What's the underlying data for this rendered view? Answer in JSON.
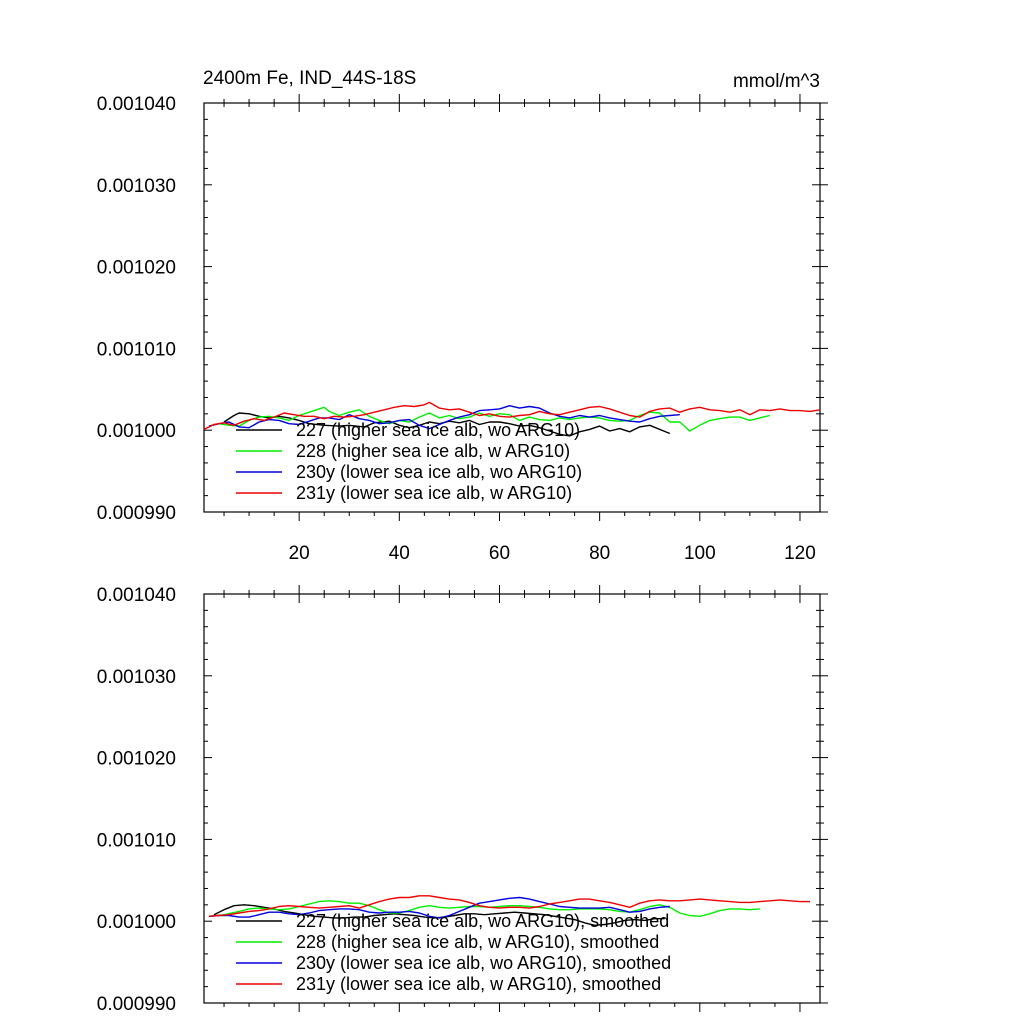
{
  "chart_data": [
    {
      "type": "line",
      "title": "2400m Fe, IND_44S-18S",
      "units": "mmol/m^3",
      "xlim": [
        1,
        124
      ],
      "ylim": [
        0.00099,
        0.00104
      ],
      "yticks": [
        "0.001040",
        "0.001030",
        "0.001020",
        "0.001010",
        "0.001000",
        "0.000990"
      ],
      "xticks": [
        "20",
        "40",
        "60",
        "80",
        "100",
        "120"
      ],
      "legend_position": "lower-left",
      "series": [
        {
          "name": "227 (higher sea ice alb, wo ARG10)",
          "color": "#000000",
          "x": [
            5,
            7,
            8,
            10,
            12,
            14,
            16,
            18,
            20,
            22,
            25,
            28,
            30,
            33,
            35,
            38,
            40,
            42,
            44,
            46,
            48,
            50,
            52,
            54,
            56,
            58,
            60,
            62,
            64,
            66,
            68,
            70,
            72,
            74,
            76,
            78,
            80,
            82,
            84,
            86,
            88,
            90,
            92,
            94
          ],
          "y": [
            0.001001,
            0.0010018,
            0.0010021,
            0.001002,
            0.0010017,
            0.0010015,
            0.0010017,
            0.0010015,
            0.0010012,
            0.0010008,
            0.0010006,
            0.0010005,
            0.0010006,
            0.0010004,
            0.0010009,
            0.0010011,
            0.0010006,
            0.0010003,
            0.0010006,
            0.001001,
            0.0010008,
            0.0010011,
            0.0010009,
            0.0010012,
            0.0010007,
            0.001001,
            0.001001,
            0.0010008,
            0.0010005,
            0.0010006,
            0.0010003,
            0.0009999,
            0.0009995,
            0.0009993,
            0.0009998,
            0.0010001,
            0.0010005,
            0.0009999,
            0.0010002,
            0.0009998,
            0.0010004,
            0.0010006,
            0.0010001,
            0.0009996
          ]
        },
        {
          "name": "228 (higher sea ice alb, w ARG10)",
          "color": "#00ee00",
          "x": [
            2,
            4,
            6,
            8,
            10,
            12,
            14,
            16,
            18,
            20,
            22,
            24,
            25,
            26,
            28,
            30,
            32,
            34,
            36,
            38,
            40,
            42,
            44,
            46,
            48,
            50,
            52,
            54,
            56,
            58,
            60,
            62,
            64,
            66,
            68,
            70,
            72,
            74,
            76,
            78,
            80,
            82,
            84,
            86,
            88,
            90,
            92,
            94,
            96,
            98,
            100,
            102,
            104,
            106,
            108,
            110,
            112,
            114
          ],
          "y": [
            0.0010005,
            0.0010008,
            0.0010006,
            0.0010005,
            0.0010012,
            0.0010016,
            0.0010017,
            0.0010015,
            0.0010012,
            0.0010018,
            0.0010022,
            0.0010026,
            0.0010028,
            0.0010023,
            0.0010018,
            0.0010022,
            0.0010025,
            0.0010017,
            0.0010012,
            0.0010008,
            0.0010012,
            0.001001,
            0.0010016,
            0.0010021,
            0.0010015,
            0.0010018,
            0.0010014,
            0.0010016,
            0.0010021,
            0.0010017,
            0.001002,
            0.0010019,
            0.0010012,
            0.0010016,
            0.0010013,
            0.0010012,
            0.0010015,
            0.0010013,
            0.0010015,
            0.0010016,
            0.0010015,
            0.0010012,
            0.0010011,
            0.0010012,
            0.0010018,
            0.0010022,
            0.0010021,
            0.001001,
            0.001001,
            0.0009999,
            0.0010006,
            0.0010012,
            0.0010014,
            0.0010016,
            0.0010016,
            0.0010012,
            0.0010015,
            0.0010018
          ]
        },
        {
          "name": "230y (lower sea ice alb, wo ARG10)",
          "color": "#0000dd",
          "x": [
            2,
            4,
            6,
            8,
            10,
            12,
            14,
            16,
            18,
            20,
            22,
            24,
            26,
            28,
            30,
            32,
            34,
            36,
            38,
            40,
            42,
            44,
            46,
            48,
            50,
            52,
            54,
            56,
            58,
            60,
            62,
            64,
            66,
            68,
            70,
            72,
            74,
            76,
            78,
            80,
            82,
            84,
            86,
            88,
            90,
            92,
            94,
            96
          ],
          "y": [
            0.0010005,
            0.0010008,
            0.001001,
            0.0010004,
            0.0010003,
            0.001001,
            0.0010013,
            0.0010012,
            0.0010008,
            0.0010007,
            0.0010011,
            0.0010015,
            0.0010015,
            0.0010013,
            0.0010019,
            0.0010014,
            0.0010012,
            0.0010008,
            0.0010009,
            0.0010012,
            0.0010013,
            0.0010006,
            0.0010002,
            0.0010007,
            0.0010012,
            0.0010016,
            0.0010019,
            0.0010024,
            0.0010025,
            0.0010026,
            0.001003,
            0.0010027,
            0.0010029,
            0.0010027,
            0.0010021,
            0.0010017,
            0.0010015,
            0.0010018,
            0.0010016,
            0.0010018,
            0.0010015,
            0.0010013,
            0.0010011,
            0.001001,
            0.0010014,
            0.0010017,
            0.0010018,
            0.0010019
          ]
        },
        {
          "name": "231y (lower sea ice alb, w ARG10)",
          "color": "#ee0000",
          "x": [
            1,
            3,
            5,
            7,
            9,
            11,
            13,
            15,
            17,
            19,
            21,
            23,
            25,
            27,
            29,
            31,
            33,
            35,
            37,
            39,
            41,
            43,
            45,
            46,
            48,
            50,
            52,
            54,
            56,
            58,
            60,
            62,
            64,
            66,
            68,
            70,
            72,
            74,
            76,
            78,
            80,
            82,
            84,
            86,
            88,
            90,
            92,
            94,
            96,
            98,
            100,
            102,
            104,
            106,
            108,
            110,
            112,
            114,
            116,
            118,
            120,
            122,
            124
          ],
          "y": [
            0.0010001,
            0.0010007,
            0.0010009,
            0.0010006,
            0.0010011,
            0.0010014,
            0.0010012,
            0.0010016,
            0.0010021,
            0.0010019,
            0.0010017,
            0.0010017,
            0.0010014,
            0.0010017,
            0.0010016,
            0.0010017,
            0.0010019,
            0.0010022,
            0.0010025,
            0.0010028,
            0.001003,
            0.0010029,
            0.0010031,
            0.0010034,
            0.0010027,
            0.0010025,
            0.0010026,
            0.0010022,
            0.0010018,
            0.001002,
            0.0010017,
            0.0010016,
            0.0010018,
            0.0010019,
            0.0010023,
            0.001002,
            0.0010019,
            0.0010022,
            0.0010025,
            0.0010028,
            0.0010029,
            0.0010026,
            0.0010022,
            0.0010018,
            0.0010016,
            0.0010023,
            0.0010026,
            0.0010027,
            0.0010022,
            0.0010026,
            0.0010028,
            0.0010025,
            0.0010024,
            0.0010022,
            0.0010025,
            0.0010019,
            0.0010025,
            0.0010024,
            0.0010026,
            0.0010024,
            0.0010024,
            0.0010023,
            0.0010025
          ]
        }
      ]
    },
    {
      "type": "line",
      "title": "",
      "xlim": [
        1,
        124
      ],
      "ylim": [
        0.00099,
        0.00104
      ],
      "yticks": [
        "0.001040",
        "0.001030",
        "0.001020",
        "0.001010",
        "0.001000",
        "0.000990"
      ],
      "legend_position": "lower-left",
      "series": [
        {
          "name": "227 (higher sea ice alb, wo ARG10), smoothed",
          "color": "#000000",
          "x": [
            3,
            5,
            7,
            9,
            11,
            13,
            15,
            17,
            19,
            21,
            23,
            25,
            27,
            29,
            31,
            33,
            35,
            37,
            39,
            41,
            43,
            45,
            47,
            49,
            51,
            53,
            55,
            57,
            59,
            61,
            63,
            65,
            67,
            69,
            71,
            73,
            75,
            77,
            79,
            81,
            83,
            85,
            87,
            89,
            91,
            93
          ],
          "y": [
            0.0010008,
            0.0010014,
            0.0010019,
            0.001002,
            0.0010019,
            0.0010017,
            0.0010015,
            0.0010012,
            0.001001,
            0.0010008,
            0.0010006,
            0.0010005,
            0.0010004,
            0.0010004,
            0.0010005,
            0.0010005,
            0.0010007,
            0.0010008,
            0.0010009,
            0.0010008,
            0.0010007,
            0.0010005,
            0.0010004,
            0.0010005,
            0.0010007,
            0.0010009,
            0.0010009,
            0.0010008,
            0.0010009,
            0.001001,
            0.0010011,
            0.001001,
            0.0010009,
            0.0010008,
            0.0010006,
            0.0010004,
            0.0010002,
            0.0009998,
            0.0009995,
            0.0009996,
            0.0009998,
            0.0010001,
            0.0010002,
            0.0010001,
            0.0010003,
            0.0010003
          ]
        },
        {
          "name": "228 (higher sea ice alb, w ARG10), smoothed",
          "color": "#00ee00",
          "x": [
            2,
            5,
            8,
            10,
            12,
            14,
            16,
            18,
            20,
            22,
            24,
            26,
            28,
            30,
            32,
            34,
            36,
            38,
            40,
            42,
            44,
            46,
            48,
            50,
            52,
            54,
            56,
            58,
            60,
            62,
            64,
            66,
            68,
            70,
            72,
            74,
            76,
            78,
            80,
            82,
            84,
            86,
            88,
            90,
            92,
            94,
            96,
            98,
            100,
            102,
            104,
            106,
            108,
            110,
            112
          ],
          "y": [
            0.0010006,
            0.0010008,
            0.0010012,
            0.0010015,
            0.0010016,
            0.0010015,
            0.0010014,
            0.0010015,
            0.0010018,
            0.0010021,
            0.0010024,
            0.0010025,
            0.0010024,
            0.0010022,
            0.0010022,
            0.0010019,
            0.0010014,
            0.001001,
            0.001001,
            0.0010013,
            0.0010017,
            0.0010019,
            0.0010017,
            0.0010016,
            0.0010017,
            0.0010018,
            0.0010018,
            0.0010017,
            0.0010018,
            0.0010019,
            0.0010019,
            0.0010018,
            0.0010017,
            0.0010015,
            0.0010014,
            0.0010014,
            0.0010015,
            0.0010015,
            0.0010015,
            0.0010014,
            0.0010012,
            0.0010011,
            0.0010014,
            0.0010018,
            0.001002,
            0.0010017,
            0.001001,
            0.0010007,
            0.0010006,
            0.0010009,
            0.0010013,
            0.0010015,
            0.0010015,
            0.0010014,
            0.0010015
          ]
        },
        {
          "name": "230y (lower sea ice alb, wo ARG10), smoothed",
          "color": "#0000dd",
          "x": [
            2,
            4,
            6,
            8,
            10,
            12,
            14,
            16,
            18,
            20,
            22,
            24,
            26,
            28,
            30,
            32,
            34,
            36,
            38,
            40,
            42,
            44,
            46,
            48,
            50,
            52,
            54,
            56,
            58,
            60,
            62,
            64,
            66,
            68,
            70,
            72,
            74,
            76,
            78,
            80,
            82,
            84,
            86,
            88,
            90,
            92,
            94
          ],
          "y": [
            0.0010006,
            0.0010007,
            0.0010007,
            0.0010005,
            0.0010005,
            0.0010008,
            0.0010011,
            0.0010011,
            0.0010009,
            0.0010008,
            0.001001,
            0.0010013,
            0.0010014,
            0.0010015,
            0.0010015,
            0.0010014,
            0.0010011,
            0.001001,
            0.0010011,
            0.0010011,
            0.0010012,
            0.001001,
            0.0010006,
            0.0010004,
            0.0010007,
            0.0010012,
            0.0010017,
            0.0010022,
            0.0010024,
            0.0010026,
            0.0010028,
            0.0010029,
            0.0010027,
            0.0010024,
            0.0010021,
            0.0010018,
            0.0010017,
            0.0010016,
            0.0010016,
            0.0010016,
            0.0010017,
            0.0010014,
            0.0010011,
            0.0010012,
            0.0010015,
            0.0010017,
            0.0010018
          ]
        },
        {
          "name": "231y (lower sea ice alb, w ARG10), smoothed",
          "color": "#ee0000",
          "x": [
            2,
            4,
            6,
            8,
            10,
            12,
            14,
            16,
            18,
            20,
            22,
            24,
            26,
            28,
            30,
            32,
            34,
            36,
            38,
            40,
            42,
            44,
            46,
            48,
            50,
            52,
            54,
            56,
            58,
            60,
            62,
            64,
            66,
            68,
            70,
            72,
            74,
            76,
            78,
            80,
            82,
            84,
            86,
            88,
            90,
            92,
            94,
            96,
            98,
            100,
            102,
            104,
            106,
            108,
            110,
            112,
            114,
            116,
            118,
            120,
            122
          ],
          "y": [
            0.0010006,
            0.0010007,
            0.0010008,
            0.001001,
            0.0010012,
            0.0010013,
            0.0010015,
            0.0010018,
            0.0010019,
            0.0010018,
            0.0010017,
            0.0010016,
            0.0010017,
            0.0010018,
            0.0010019,
            0.0010016,
            0.001002,
            0.0010024,
            0.0010027,
            0.0010029,
            0.0010029,
            0.0010031,
            0.0010031,
            0.0010029,
            0.0010027,
            0.0010026,
            0.0010023,
            0.0010019,
            0.0010017,
            0.0010016,
            0.0010017,
            0.0010017,
            0.0010016,
            0.0010018,
            0.0010021,
            0.0010023,
            0.0010025,
            0.0010027,
            0.0010027,
            0.0010025,
            0.0010023,
            0.001002,
            0.0010017,
            0.0010022,
            0.0010025,
            0.0010026,
            0.0010025,
            0.0010025,
            0.0010026,
            0.0010027,
            0.0010026,
            0.0010025,
            0.0010024,
            0.0010023,
            0.0010023,
            0.0010024,
            0.0010025,
            0.0010026,
            0.0010025,
            0.0010024,
            0.0010024
          ]
        }
      ]
    }
  ]
}
